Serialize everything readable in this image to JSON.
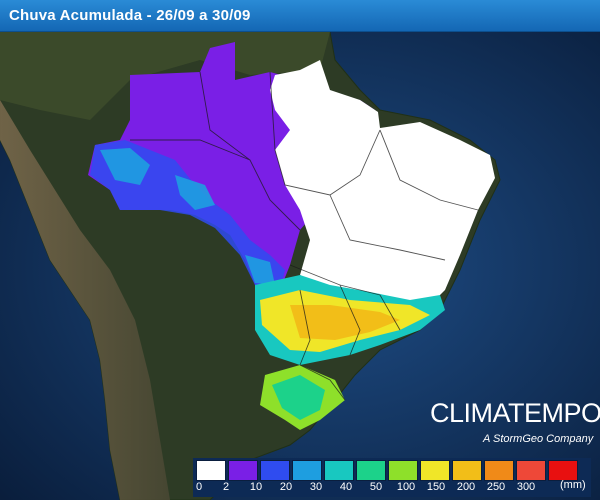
{
  "title": "Chuva Acumulada - 26/09 a 30/09",
  "brand": {
    "name": "CLIMATEMPO",
    "tagline": "A StormGeo Company"
  },
  "legend": {
    "unit": "(mm)",
    "ticks": [
      "0",
      "2",
      "10",
      "20",
      "30",
      "40",
      "50",
      "100",
      "150",
      "200",
      "250",
      "300"
    ],
    "colors": [
      "#ffffff",
      "#7a1fe6",
      "#2f4cf0",
      "#1e9ee0",
      "#18c8c0",
      "#1cd28a",
      "#8ee02a",
      "#f0e628",
      "#f2be18",
      "#f08a18",
      "#ee4838",
      "#e81010"
    ]
  }
}
